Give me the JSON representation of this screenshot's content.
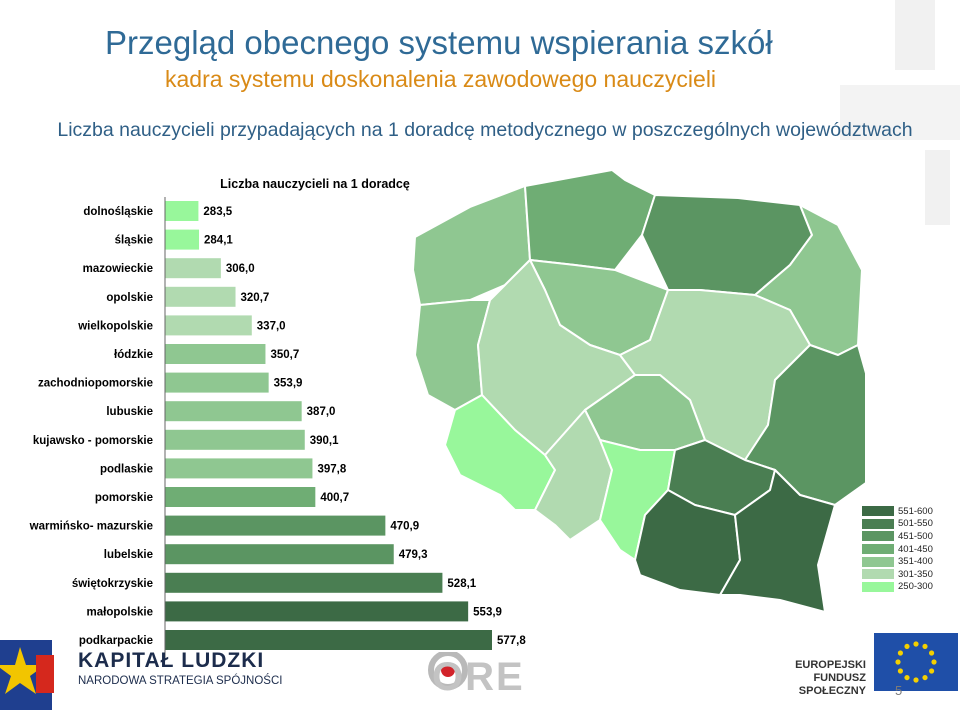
{
  "header": {
    "title": "Przegląd obecnego systemu wspierania szkół",
    "subtitle": "kadra systemu doskonalenia zawodowego nauczycieli",
    "caption": "Liczba nauczycieli przypadających na 1 doradcę metodycznego w poszczególnych województwach"
  },
  "chart_data": {
    "type": "bar",
    "orientation": "horizontal",
    "title": "Liczba nauczycieli na 1 doradcę",
    "categories": [
      "dolnośląskie",
      "śląskie",
      "mazowieckie",
      "opolskie",
      "wielkopolskie",
      "łódzkie",
      "zachodniopomorskie",
      "lubuskie",
      "kujawsko - pomorskie",
      "podlaskie",
      "pomorskie",
      "warmińsko- mazurskie",
      "lubelskie",
      "świętokrzyskie",
      "małopolskie",
      "podkarpackie"
    ],
    "values": [
      283.5,
      284.1,
      306.0,
      320.7,
      337.0,
      350.7,
      353.9,
      387.0,
      390.1,
      397.8,
      400.7,
      470.9,
      479.3,
      528.1,
      553.9,
      577.8
    ],
    "value_labels": [
      "283,5",
      "284,1",
      "306,0",
      "320,7",
      "337,0",
      "350,7",
      "353,9",
      "387,0",
      "390,1",
      "397,8",
      "400,7",
      "470,9",
      "479,3",
      "528,1",
      "553,9",
      "577,8"
    ],
    "xlim": [
      250,
      600
    ],
    "grid": false,
    "legend_position": "bottom-right",
    "legend": [
      {
        "label": "551-600",
        "color": "#3c6a45"
      },
      {
        "label": "501-550",
        "color": "#4a7e52"
      },
      {
        "label": "451-500",
        "color": "#5b9562"
      },
      {
        "label": "401-450",
        "color": "#6fad74"
      },
      {
        "label": "351-400",
        "color": "#8fc791"
      },
      {
        "label": "301-350",
        "color": "#b1dab0"
      },
      {
        "label": "250-300",
        "color": "#98f79b"
      }
    ]
  },
  "map": {
    "regions": {
      "zachodniopomorskie": "#8fc791",
      "pomorskie": "#6fad74",
      "warmińsko- mazurskie": "#5b9562",
      "podlaskie": "#8fc791",
      "lubuskie": "#8fc791",
      "wielkopolskie": "#b1dab0",
      "kujawsko - pomorskie": "#8fc791",
      "mazowieckie": "#b1dab0",
      "łódzkie": "#8fc791",
      "lubelskie": "#5b9562",
      "dolnośląskie": "#98f79b",
      "opolskie": "#b1dab0",
      "śląskie": "#98f79b",
      "świętokrzyskie": "#4a7e52",
      "małopolskie": "#3c6a45",
      "podkarpackie": "#3c6a45"
    }
  },
  "footer": {
    "brand_title": "KAPITAŁ LUDZKI",
    "brand_subtitle": "NARODOWA STRATEGIA SPÓJNOŚCI",
    "ore_text": "ORE",
    "eu_line1": "EUROPEJSKI",
    "eu_line2": "FUNDUSZ SPOŁECZNY",
    "page_number": "5"
  }
}
